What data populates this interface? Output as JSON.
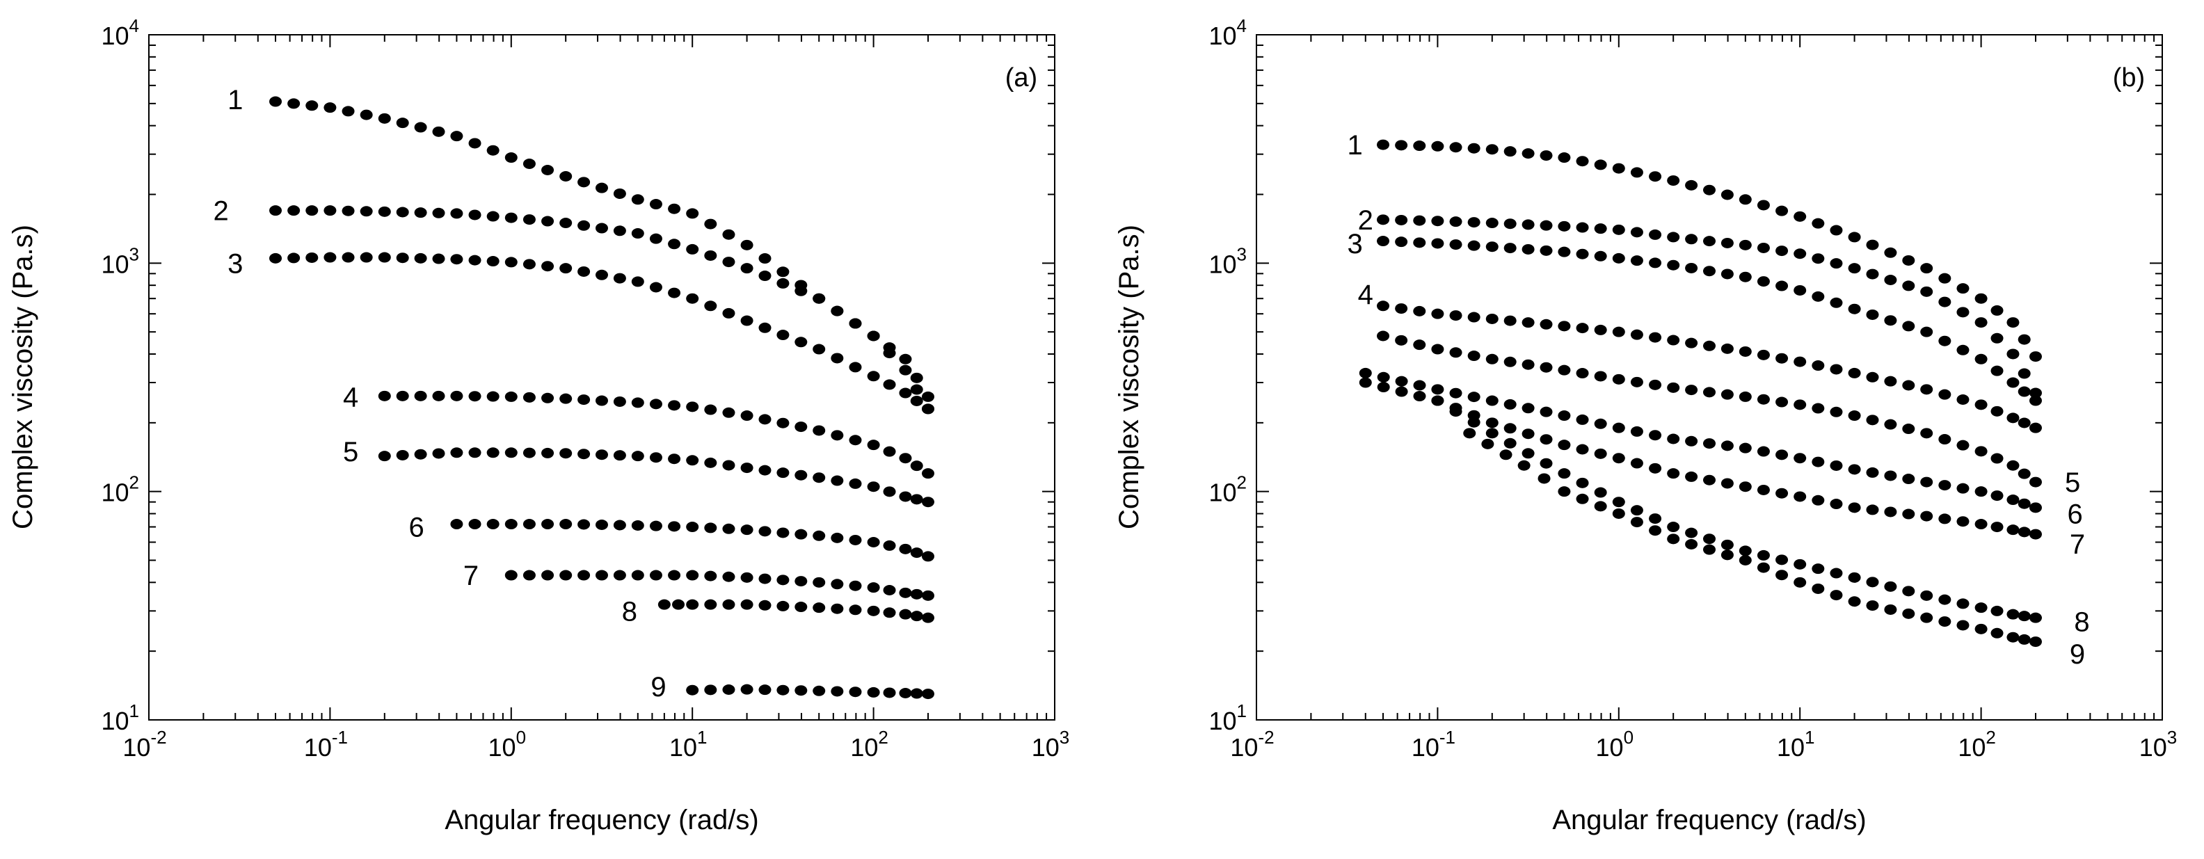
{
  "chart_data": [
    {
      "type": "scatter",
      "panel_label": "(a)",
      "xscale": "log",
      "yscale": "log",
      "xlim": [
        0.01,
        1000
      ],
      "ylim": [
        10,
        10000
      ],
      "xlabel": "Angular frequency (rad/s)",
      "ylabel": "Complex viscosity (Pa.s)",
      "x_ticks": [
        {
          "base": "10",
          "exp": "-2"
        },
        {
          "base": "10",
          "exp": "-1"
        },
        {
          "base": "10",
          "exp": "0"
        },
        {
          "base": "10",
          "exp": "1"
        },
        {
          "base": "10",
          "exp": "2"
        },
        {
          "base": "10",
          "exp": "3"
        }
      ],
      "y_ticks": [
        {
          "base": "10",
          "exp": "1"
        },
        {
          "base": "10",
          "exp": "2"
        },
        {
          "base": "10",
          "exp": "3"
        },
        {
          "base": "10",
          "exp": "4"
        }
      ],
      "series": [
        {
          "name": "1",
          "label_at": [
            0.03,
            5200
          ],
          "points": [
            [
              0.05,
              5100
            ],
            [
              0.1,
              4800
            ],
            [
              0.2,
              4300
            ],
            [
              0.5,
              3600
            ],
            [
              1,
              2900
            ],
            [
              2,
              2400
            ],
            [
              5,
              1900
            ],
            [
              10,
              1650
            ],
            [
              20,
              1200
            ],
            [
              50,
              700
            ],
            [
              100,
              480
            ],
            [
              150,
              380
            ],
            [
              200,
              260
            ]
          ]
        },
        {
          "name": "2",
          "label_at": [
            0.025,
            1700
          ],
          "points": [
            [
              0.05,
              1700
            ],
            [
              0.1,
              1700
            ],
            [
              0.2,
              1680
            ],
            [
              0.5,
              1650
            ],
            [
              1,
              1580
            ],
            [
              2,
              1500
            ],
            [
              5,
              1350
            ],
            [
              10,
              1150
            ],
            [
              20,
              950
            ],
            [
              50,
              700
            ],
            [
              100,
              480
            ],
            [
              150,
              340
            ],
            [
              200,
              230
            ]
          ]
        },
        {
          "name": "3",
          "label_at": [
            0.03,
            1000
          ],
          "points": [
            [
              0.05,
              1050
            ],
            [
              0.1,
              1060
            ],
            [
              0.2,
              1060
            ],
            [
              0.5,
              1040
            ],
            [
              1,
              1010
            ],
            [
              2,
              950
            ],
            [
              5,
              830
            ],
            [
              10,
              700
            ],
            [
              20,
              560
            ],
            [
              50,
              420
            ],
            [
              100,
              320
            ],
            [
              150,
              270
            ],
            [
              200,
              230
            ]
          ]
        },
        {
          "name": "4",
          "label_at": [
            0.13,
            260
          ],
          "points": [
            [
              0.2,
              262
            ],
            [
              0.5,
              262
            ],
            [
              1,
              260
            ],
            [
              2,
              255
            ],
            [
              5,
              245
            ],
            [
              10,
              235
            ],
            [
              20,
              215
            ],
            [
              50,
              185
            ],
            [
              100,
              160
            ],
            [
              150,
              140
            ],
            [
              200,
              120
            ]
          ]
        },
        {
          "name": "5",
          "label_at": [
            0.13,
            150
          ],
          "points": [
            [
              0.2,
              143
            ],
            [
              0.5,
              148
            ],
            [
              1,
              148
            ],
            [
              2,
              147
            ],
            [
              5,
              143
            ],
            [
              10,
              137
            ],
            [
              20,
              127
            ],
            [
              50,
              115
            ],
            [
              100,
              105
            ],
            [
              150,
              95
            ],
            [
              200,
              90
            ]
          ]
        },
        {
          "name": "6",
          "label_at": [
            0.3,
            70
          ],
          "points": [
            [
              0.5,
              72
            ],
            [
              1,
              72
            ],
            [
              2,
              72
            ],
            [
              5,
              71
            ],
            [
              10,
              70
            ],
            [
              20,
              68
            ],
            [
              50,
              64
            ],
            [
              100,
              60
            ],
            [
              150,
              56
            ],
            [
              200,
              52
            ]
          ]
        },
        {
          "name": "7",
          "label_at": [
            0.6,
            43
          ],
          "points": [
            [
              1,
              43
            ],
            [
              2,
              43
            ],
            [
              5,
              43
            ],
            [
              10,
              43
            ],
            [
              20,
              42
            ],
            [
              50,
              40
            ],
            [
              100,
              38
            ],
            [
              150,
              36
            ],
            [
              200,
              35
            ]
          ]
        },
        {
          "name": "8",
          "label_at": [
            4.5,
            30
          ],
          "points": [
            [
              7,
              32
            ],
            [
              10,
              32
            ],
            [
              20,
              32
            ],
            [
              50,
              31
            ],
            [
              100,
              30
            ],
            [
              150,
              29
            ],
            [
              200,
              28
            ]
          ]
        },
        {
          "name": "9",
          "label_at": [
            6.5,
            14
          ],
          "points": [
            [
              10,
              13.5
            ],
            [
              20,
              13.6
            ],
            [
              50,
              13.4
            ],
            [
              100,
              13.2
            ],
            [
              150,
              13.1
            ],
            [
              200,
              13
            ]
          ]
        }
      ]
    },
    {
      "type": "scatter",
      "panel_label": "(b)",
      "xscale": "log",
      "yscale": "log",
      "xlim": [
        0.01,
        1000
      ],
      "ylim": [
        10,
        10000
      ],
      "xlabel": "Angular frequency (rad/s)",
      "ylabel": "Complex viscosity (Pa.s)",
      "x_ticks": [
        {
          "base": "10",
          "exp": "-2"
        },
        {
          "base": "10",
          "exp": "-1"
        },
        {
          "base": "10",
          "exp": "0"
        },
        {
          "base": "10",
          "exp": "1"
        },
        {
          "base": "10",
          "exp": "2"
        },
        {
          "base": "10",
          "exp": "3"
        }
      ],
      "y_ticks": [
        {
          "base": "10",
          "exp": "1"
        },
        {
          "base": "10",
          "exp": "2"
        },
        {
          "base": "10",
          "exp": "3"
        },
        {
          "base": "10",
          "exp": "4"
        }
      ],
      "series": [
        {
          "name": "1",
          "label_at": [
            0.035,
            3300
          ],
          "points": [
            [
              0.05,
              3300
            ],
            [
              0.1,
              3250
            ],
            [
              0.2,
              3150
            ],
            [
              0.5,
              2900
            ],
            [
              1,
              2600
            ],
            [
              2,
              2300
            ],
            [
              5,
              1900
            ],
            [
              10,
              1600
            ],
            [
              20,
              1300
            ],
            [
              50,
              950
            ],
            [
              100,
              700
            ],
            [
              150,
              550
            ],
            [
              200,
              390
            ]
          ]
        },
        {
          "name": "2",
          "label_at": [
            0.04,
            1550
          ],
          "points": [
            [
              0.05,
              1550
            ],
            [
              0.1,
              1530
            ],
            [
              0.2,
              1500
            ],
            [
              0.5,
              1450
            ],
            [
              1,
              1400
            ],
            [
              2,
              1300
            ],
            [
              5,
              1200
            ],
            [
              10,
              1100
            ],
            [
              20,
              950
            ],
            [
              50,
              750
            ],
            [
              100,
              550
            ],
            [
              150,
              400
            ],
            [
              200,
              270
            ]
          ]
        },
        {
          "name": "3",
          "label_at": [
            0.035,
            1220
          ],
          "points": [
            [
              0.05,
              1250
            ],
            [
              0.1,
              1220
            ],
            [
              0.2,
              1180
            ],
            [
              0.5,
              1120
            ],
            [
              1,
              1050
            ],
            [
              2,
              980
            ],
            [
              5,
              870
            ],
            [
              10,
              760
            ],
            [
              20,
              630
            ],
            [
              50,
              500
            ],
            [
              100,
              380
            ],
            [
              150,
              300
            ],
            [
              200,
              250
            ]
          ]
        },
        {
          "name": "4",
          "label_at": [
            0.04,
            730
          ],
          "points": [
            [
              0.05,
              650
            ],
            [
              0.1,
              600
            ],
            [
              0.2,
              570
            ],
            [
              0.5,
              530
            ],
            [
              1,
              500
            ],
            [
              2,
              460
            ],
            [
              5,
              410
            ],
            [
              10,
              370
            ],
            [
              20,
              330
            ],
            [
              50,
              280
            ],
            [
              100,
              240
            ],
            [
              150,
              210
            ],
            [
              200,
              190
            ]
          ]
        },
        {
          "name": "5",
          "label_at": [
            320,
            110
          ],
          "points": [
            [
              0.05,
              480
            ],
            [
              0.1,
              420
            ],
            [
              0.2,
              380
            ],
            [
              0.5,
              340
            ],
            [
              1,
              310
            ],
            [
              2,
              285
            ],
            [
              5,
              260
            ],
            [
              10,
              240
            ],
            [
              20,
              215
            ],
            [
              50,
              180
            ],
            [
              100,
              150
            ],
            [
              150,
              130
            ],
            [
              200,
              110
            ]
          ]
        },
        {
          "name": "6",
          "label_at": [
            330,
            80
          ],
          "points": [
            [
              0.04,
              330
            ],
            [
              0.1,
              280
            ],
            [
              0.2,
              250
            ],
            [
              0.5,
              215
            ],
            [
              1,
              190
            ],
            [
              2,
              170
            ],
            [
              5,
              155
            ],
            [
              10,
              140
            ],
            [
              20,
              125
            ],
            [
              50,
              110
            ],
            [
              100,
              100
            ],
            [
              150,
              92
            ],
            [
              200,
              85
            ]
          ]
        },
        {
          "name": "7",
          "label_at": [
            340,
            59
          ],
          "points": [
            [
              0.04,
              300
            ],
            [
              0.1,
              250
            ],
            [
              0.2,
              200
            ],
            [
              0.5,
              160
            ],
            [
              1,
              140
            ],
            [
              2,
              120
            ],
            [
              5,
              105
            ],
            [
              10,
              95
            ],
            [
              20,
              85
            ],
            [
              50,
              78
            ],
            [
              100,
              72
            ],
            [
              150,
              68
            ],
            [
              200,
              65
            ]
          ]
        },
        {
          "name": "8",
          "label_at": [
            360,
            27
          ],
          "points": [
            [
              0.1,
              250
            ],
            [
              0.2,
              180
            ],
            [
              0.5,
              120
            ],
            [
              1,
              90
            ],
            [
              2,
              70
            ],
            [
              5,
              55
            ],
            [
              10,
              48
            ],
            [
              20,
              42
            ],
            [
              50,
              35
            ],
            [
              100,
              31
            ],
            [
              150,
              29
            ],
            [
              200,
              28
            ]
          ]
        },
        {
          "name": "9",
          "label_at": [
            340,
            19.5
          ],
          "points": [
            [
              0.15,
              180
            ],
            [
              0.3,
              130
            ],
            [
              0.5,
              100
            ],
            [
              1,
              80
            ],
            [
              2,
              62
            ],
            [
              5,
              50
            ],
            [
              10,
              40
            ],
            [
              20,
              33
            ],
            [
              50,
              28
            ],
            [
              100,
              25
            ],
            [
              150,
              23
            ],
            [
              200,
              22
            ]
          ]
        }
      ]
    }
  ]
}
